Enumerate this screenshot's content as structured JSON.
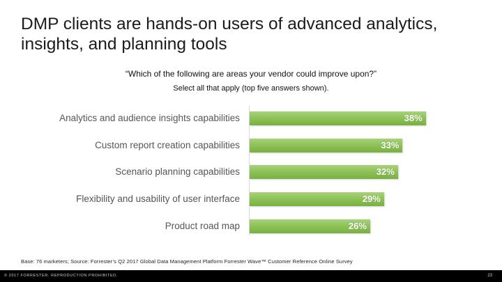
{
  "slide": {
    "title": "DMP clients are hands-on users of advanced analytics, insights, and planning tools",
    "question": "“Which of the following are areas your vendor could improve upon?”",
    "instruction": "Select all that apply (top five answers shown).",
    "base_note": "Base: 76 marketers; Source: Forrester’s Q2 2017 Global Data Management Platform Forrester Wave™ Customer Reference Online Survey",
    "copyright": "© 2017 FORRESTER. REPRODUCTION PROHIBITED.",
    "page_number": "23"
  },
  "chart_data": {
    "type": "bar",
    "orientation": "horizontal",
    "categories": [
      "Analytics and audience insights capabilities",
      "Custom report creation capabilities",
      "Scenario planning capabilities",
      "Flexibility and usability of user interface",
      "Product road map"
    ],
    "values": [
      38,
      33,
      32,
      29,
      26
    ],
    "value_labels": [
      "38%",
      "33%",
      "32%",
      "29%",
      "26%"
    ],
    "bar_color": "#8fc35a",
    "xlim": [
      0,
      40
    ],
    "grid": false,
    "legend": "none"
  }
}
